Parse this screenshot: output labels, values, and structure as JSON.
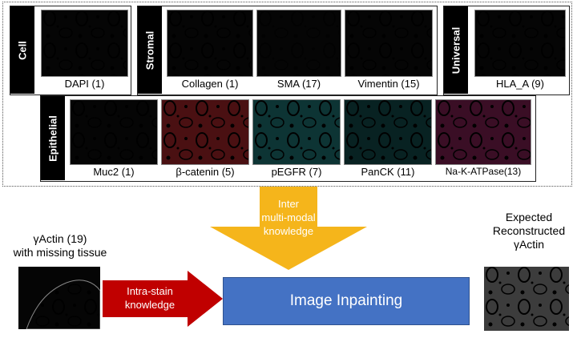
{
  "groups": {
    "cell": "Cell",
    "stromal": "Stromal",
    "universal": "Universal",
    "epithelial": "Epithelial"
  },
  "stains": {
    "dapi": {
      "label": "DAPI (1)",
      "color": "#7c9fd8"
    },
    "collagen": {
      "label": "Collagen (1)",
      "color": "#d07a3c"
    },
    "sma": {
      "label": "SMA (17)",
      "color": "#e6e6e6"
    },
    "vimentin": {
      "label": "Vimentin (15)",
      "color": "#c05ac8"
    },
    "hla": {
      "label": "HLA_A (9)",
      "color": "#9a8f2c"
    },
    "muc2": {
      "label": "Muc2 (1)",
      "color": "#8ee02a"
    },
    "catenin": {
      "label": "β-catenin (5)",
      "color": "#d8484f"
    },
    "pegfr": {
      "label": "pEGFR (7)",
      "color": "#4fd2d2"
    },
    "panck": {
      "label": "PanCK (11)",
      "color": "#38b4b4"
    },
    "nak": {
      "label": "Na-K-ATPase(13)",
      "color": "#d84f9c"
    }
  },
  "inter_arrow": {
    "line1": "Inter",
    "line2": "multi-modal",
    "line3": "knowledge",
    "color": "#f5b51b"
  },
  "intra_arrow": {
    "line1": "Intra-stain",
    "line2": "knowledge",
    "color": "#c00000"
  },
  "inpainting": {
    "label": "Image Inpainting",
    "color": "#4472c4"
  },
  "input_image": {
    "line1": "γActin (19)",
    "line2": "with missing tissue"
  },
  "output_image": {
    "line1": "Expected",
    "line2": "Reconstructed",
    "line3": "γActin"
  }
}
